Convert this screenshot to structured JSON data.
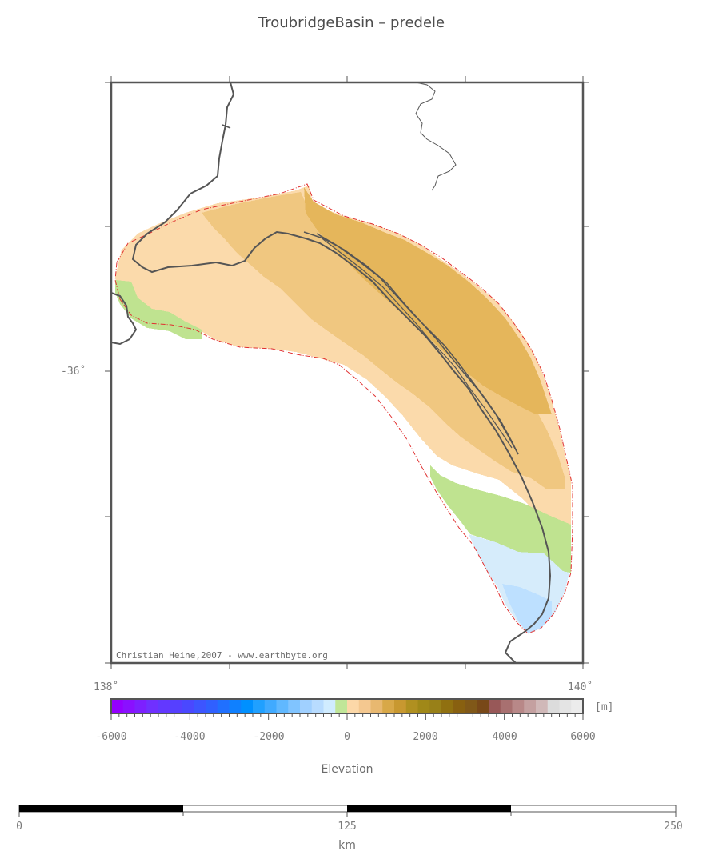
{
  "title": "TroubridgeBasin – predele",
  "credit": "Christian Heine,2007 - www.earthbyte.org",
  "axes": {
    "lat_label": "-36˚",
    "lon_left_label": "138˚",
    "lon_right_label": "140˚"
  },
  "colorbar": {
    "unit_label": "[m]",
    "title": "Elevation",
    "ticks": [
      "-6000",
      "-4000",
      "-2000",
      "0",
      "2000",
      "4000",
      "6000"
    ],
    "colors": [
      "#9400ff",
      "#8a10ff",
      "#7d20ff",
      "#7030ff",
      "#6338ff",
      "#5640ff",
      "#4a48ff",
      "#3d55ff",
      "#3060ff",
      "#2070ff",
      "#0f80ff",
      "#0090ff",
      "#20a0ff",
      "#40aaff",
      "#60b8ff",
      "#80c4ff",
      "#a0d0ff",
      "#b8dcff",
      "#d0ecff",
      "#c0e698",
      "#fcd8a8",
      "#f4c890",
      "#e8b870",
      "#d8a848",
      "#c89830",
      "#b09020",
      "#a08818",
      "#988018",
      "#907010",
      "#886010",
      "#805818",
      "#784818",
      "#985858",
      "#a87070",
      "#b88888",
      "#c4a0a0",
      "#d0b8b8",
      "#dcdcdc",
      "#e4e4e4",
      "#ececec"
    ]
  },
  "scalebar": {
    "ticks": [
      "0",
      "125",
      "250"
    ],
    "unit": "km"
  },
  "legend_colors": {
    "deep_water": "#bde0ff",
    "shallow_water": "#d6ecfb",
    "coastal_green": "#bfe390",
    "low_land": "#fbdaab",
    "mid_land": "#f0c780",
    "high_land": "#e5b65b",
    "outline": "#e03030",
    "coastline": "#555555"
  }
}
